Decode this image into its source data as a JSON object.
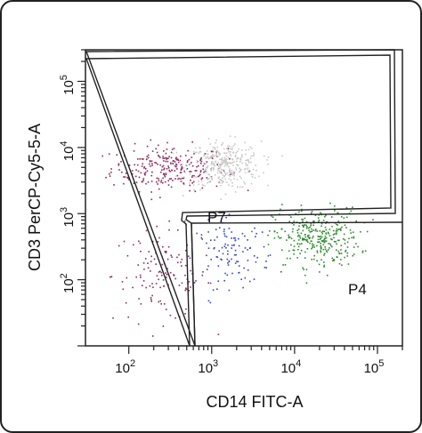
{
  "chart_data": {
    "type": "scatter",
    "title": "",
    "xlabel": "CD14 FITC-A",
    "ylabel": "CD3 PerCP-Cy5-5-A",
    "x_scale": "log",
    "y_scale": "log",
    "xlim": [
      30,
      200000
    ],
    "ylim": [
      10,
      300000
    ],
    "x_ticks": [
      {
        "base": "10",
        "exp": "2",
        "value": 100
      },
      {
        "base": "10",
        "exp": "3",
        "value": 1000
      },
      {
        "base": "10",
        "exp": "4",
        "value": 10000
      },
      {
        "base": "10",
        "exp": "5",
        "value": 100000
      }
    ],
    "y_ticks": [
      {
        "base": "10",
        "exp": "2",
        "value": 100
      },
      {
        "base": "10",
        "exp": "3",
        "value": 1000
      },
      {
        "base": "10",
        "exp": "4",
        "value": 10000
      },
      {
        "base": "10",
        "exp": "5",
        "value": 100000
      }
    ],
    "gates": [
      {
        "label": "P7"
      },
      {
        "label": "P4"
      }
    ],
    "populations": [
      {
        "color": "#8b2a5c",
        "clusters": [
          {
            "cx": 300,
            "cy": 5000,
            "sx": 0.35,
            "sy": 0.17,
            "n": 260
          },
          {
            "cx": 250,
            "cy": 120,
            "sx": 0.3,
            "sy": 0.35,
            "n": 130
          }
        ]
      },
      {
        "color": "#c8c8c8",
        "clusters": [
          {
            "cx": 1400,
            "cy": 5500,
            "sx": 0.22,
            "sy": 0.18,
            "n": 330
          }
        ]
      },
      {
        "color": "#2e8b2e",
        "clusters": [
          {
            "cx": 18000,
            "cy": 450,
            "sx": 0.26,
            "sy": 0.22,
            "n": 330
          }
        ]
      },
      {
        "color": "#3344cc",
        "clusters": [
          {
            "cx": 1800,
            "cy": 250,
            "sx": 0.22,
            "sy": 0.25,
            "n": 110
          }
        ]
      }
    ]
  }
}
